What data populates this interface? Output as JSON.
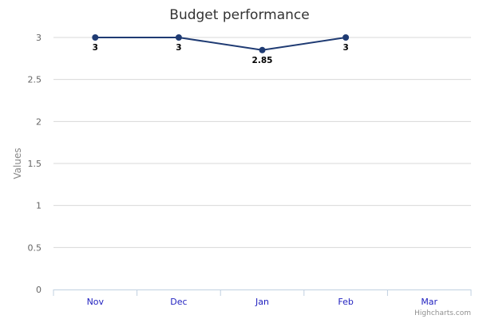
{
  "chart_data": {
    "type": "line",
    "title": "Budget performance",
    "ylabel": "Values",
    "xlabel": "",
    "categories": [
      "Nov",
      "Dec",
      "Jan",
      "Feb",
      "Mar"
    ],
    "series": [
      {
        "values": [
          3,
          3,
          2.85,
          3,
          null
        ],
        "color": "#1f3b73"
      }
    ],
    "ylim": [
      0,
      3
    ],
    "yticks": [
      "0",
      "0.5",
      "1",
      "1.5",
      "2",
      "2.5",
      "3"
    ],
    "data_labels": [
      "3",
      "3",
      "2.85",
      "3"
    ],
    "grid": true,
    "legend": "none"
  },
  "credits": "Highcharts.com",
  "colors": {
    "series": "#1f3b73",
    "grid": "#d8d8d8",
    "axis": "#c0d0e0",
    "xtick": "#1f1fbf"
  }
}
